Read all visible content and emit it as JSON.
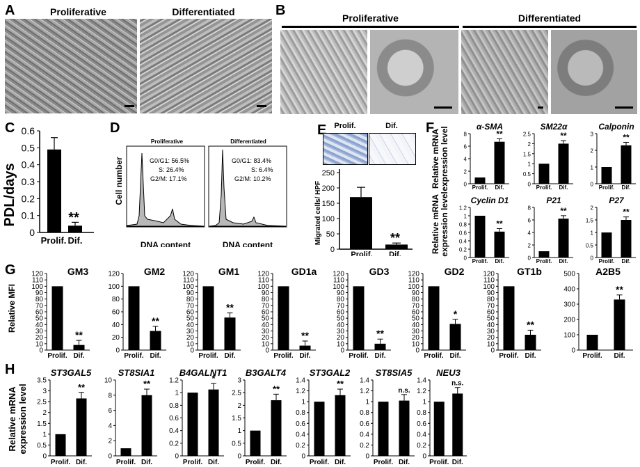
{
  "panels": {
    "A": "A",
    "B": "B",
    "C": "C",
    "D": "D",
    "E": "E",
    "F": "F",
    "G": "G",
    "H": "H"
  },
  "panelA": {
    "left": "Proliferative",
    "right": "Differentiated"
  },
  "panelB": {
    "left": "Proliferative",
    "right": "Differentiated"
  },
  "panelC": {
    "ylabel": "PDL/days",
    "ticks": [
      "0",
      "0.1",
      "0.2",
      "0.3",
      "0.4",
      "0.5",
      "0.6"
    ],
    "categories": [
      "Prolif.",
      "Dif."
    ],
    "values": [
      0.49,
      0.04
    ],
    "errors": [
      0.07,
      0.02
    ],
    "sig": "**"
  },
  "panelD": {
    "ylabel": "Cell number",
    "xlabel": "DNA content",
    "left": {
      "title": "Proliferative",
      "g0": "G0/G1: 56.5%",
      "s": "S: 26.4%",
      "g2": "G2/M: 17.1%"
    },
    "right": {
      "title": "Differentiated",
      "g0": "G0/G1: 83.4%",
      "s": "S: 6.4%",
      "g2": "G2/M: 10.2%"
    },
    "xticks": [
      "0",
      "50K",
      "100K",
      "150K",
      "200K",
      "250K"
    ]
  },
  "panelE": {
    "ylabel": "Migrated cells/ HPF",
    "ticks": [
      "0",
      "50",
      "100",
      "150",
      "200",
      "250"
    ],
    "categories": [
      "Prolif.",
      "Dif."
    ],
    "values": [
      170,
      15
    ],
    "errors": [
      32,
      5
    ],
    "sig": "**",
    "inset": [
      "Prolif.",
      "Dif."
    ]
  },
  "panelF": {
    "ylabel1": "Relative mRNA",
    "ylabel2": "expression level",
    "cats": [
      "Prolif.",
      "Dif."
    ]
  },
  "panelG": {
    "ylabel": "Relative MFI",
    "cats": [
      "Prolif.",
      "Dif."
    ]
  },
  "panelH": {
    "ylabel1": "Relative mRNA",
    "ylabel2": "expression level",
    "cats": [
      "Prolif.",
      "Dif."
    ]
  },
  "chart_data": [
    {
      "type": "bar",
      "title": "α-SMA",
      "categories": [
        "Prolif.",
        "Dif."
      ],
      "values": [
        1,
        6.7
      ],
      "ylim": [
        0,
        8
      ],
      "ticks": [
        0,
        2,
        4,
        6,
        8
      ],
      "sig": "**"
    },
    {
      "type": "bar",
      "title": "SM22α",
      "categories": [
        "Prolif.",
        "Dif."
      ],
      "values": [
        1,
        2
      ],
      "ylim": [
        0,
        2.5
      ],
      "ticks": [
        0,
        0.5,
        1,
        1.5,
        2,
        2.5
      ],
      "sig": "**"
    },
    {
      "type": "bar",
      "title": "Calponin",
      "categories": [
        "Prolif.",
        "Dif."
      ],
      "values": [
        1,
        2.3
      ],
      "ylim": [
        0,
        3
      ],
      "ticks": [
        0,
        1,
        2,
        3
      ],
      "sig": "**"
    },
    {
      "type": "bar",
      "title": "Cyclin D1",
      "categories": [
        "Prolif.",
        "Dif."
      ],
      "values": [
        1,
        0.62
      ],
      "ylim": [
        0,
        1.2
      ],
      "ticks": [
        0,
        0.2,
        0.4,
        0.6,
        0.8,
        1,
        1.2
      ],
      "sig": "**"
    },
    {
      "type": "bar",
      "title": "P21",
      "categories": [
        "Prolif.",
        "Dif."
      ],
      "values": [
        1,
        6.2
      ],
      "ylim": [
        0,
        8
      ],
      "ticks": [
        0,
        2,
        4,
        6,
        8
      ],
      "sig": "**"
    },
    {
      "type": "bar",
      "title": "P27",
      "categories": [
        "Prolif.",
        "Dif."
      ],
      "values": [
        1,
        1.5
      ],
      "ylim": [
        0,
        2
      ],
      "ticks": [
        0,
        0.5,
        1,
        1.5,
        2
      ],
      "sig": "**"
    },
    {
      "type": "bar",
      "title": "GM3",
      "categories": [
        "Prolif.",
        "Dif."
      ],
      "values": [
        100,
        8
      ],
      "ylim": [
        0,
        120
      ],
      "ticks": [
        0,
        10,
        20,
        30,
        40,
        50,
        60,
        70,
        80,
        90,
        100,
        110,
        120
      ],
      "sig": "**"
    },
    {
      "type": "bar",
      "title": "GM2",
      "categories": [
        "Prolif.",
        "Dif."
      ],
      "values": [
        100,
        30
      ],
      "ylim": [
        0,
        120
      ],
      "ticks": [
        0,
        20,
        40,
        60,
        80,
        100,
        120
      ],
      "sig": "**"
    },
    {
      "type": "bar",
      "title": "GM1",
      "categories": [
        "Prolif.",
        "Dif."
      ],
      "values": [
        100,
        51
      ],
      "ylim": [
        0,
        120
      ],
      "ticks": [
        0,
        10,
        20,
        30,
        40,
        50,
        60,
        70,
        80,
        90,
        100,
        110,
        120
      ],
      "sig": "**"
    },
    {
      "type": "bar",
      "title": "GD1a",
      "categories": [
        "Prolif.",
        "Dif."
      ],
      "values": [
        100,
        7
      ],
      "ylim": [
        0,
        120
      ],
      "ticks": [
        0,
        10,
        20,
        30,
        40,
        50,
        60,
        70,
        80,
        90,
        100,
        110,
        120
      ],
      "sig": "**"
    },
    {
      "type": "bar",
      "title": "GD3",
      "categories": [
        "Prolif.",
        "Dif."
      ],
      "values": [
        100,
        10
      ],
      "ylim": [
        0,
        120
      ],
      "ticks": [
        0,
        10,
        20,
        30,
        40,
        50,
        60,
        70,
        80,
        90,
        100,
        110,
        120
      ],
      "sig": "**"
    },
    {
      "type": "bar",
      "title": "GD2",
      "categories": [
        "Prolif.",
        "Dif."
      ],
      "values": [
        100,
        41
      ],
      "ylim": [
        0,
        120
      ],
      "ticks": [
        0,
        10,
        20,
        30,
        40,
        50,
        60,
        70,
        80,
        90,
        100,
        110,
        120
      ],
      "sig": "*"
    },
    {
      "type": "bar",
      "title": "GT1b",
      "categories": [
        "Prolif.",
        "Dif."
      ],
      "values": [
        100,
        24
      ],
      "ylim": [
        0,
        120
      ],
      "ticks": [
        0,
        10,
        20,
        30,
        40,
        50,
        60,
        70,
        80,
        90,
        100,
        110,
        120
      ],
      "sig": "**"
    },
    {
      "type": "bar",
      "title": "A2B5",
      "categories": [
        "Prolif.",
        "Dif."
      ],
      "values": [
        100,
        330
      ],
      "ylim": [
        0,
        500
      ],
      "ticks": [
        0,
        100,
        200,
        300,
        400,
        500
      ],
      "sig": "**"
    },
    {
      "type": "bar",
      "title": "ST3GAL5",
      "categories": [
        "Prolif.",
        "Dif."
      ],
      "values": [
        1,
        2.65
      ],
      "ylim": [
        0,
        3.5
      ],
      "ticks": [
        0,
        0.5,
        1,
        1.5,
        2,
        2.5,
        3,
        3.5
      ],
      "sig": "**"
    },
    {
      "type": "bar",
      "title": "ST8SIA1",
      "categories": [
        "Prolif.",
        "Dif."
      ],
      "values": [
        1,
        8
      ],
      "ylim": [
        0,
        10
      ],
      "ticks": [
        0,
        2,
        4,
        6,
        8,
        10
      ],
      "sig": "**"
    },
    {
      "type": "bar",
      "title": "B4GALNT1",
      "categories": [
        "Prolif.",
        "Dif."
      ],
      "values": [
        1,
        1.05
      ],
      "ylim": [
        0,
        1.2
      ],
      "ticks": [
        0,
        0.2,
        0.4,
        0.6,
        0.8,
        1,
        1.2
      ],
      "sig": "*"
    },
    {
      "type": "bar",
      "title": "B3GALT4",
      "categories": [
        "Prolif.",
        "Dif."
      ],
      "values": [
        1,
        2.2
      ],
      "ylim": [
        0,
        3
      ],
      "ticks": [
        0,
        0.5,
        1,
        1.5,
        2,
        2.5,
        3
      ],
      "sig": "**"
    },
    {
      "type": "bar",
      "title": "ST3GAL2",
      "categories": [
        "Prolif.",
        "Dif."
      ],
      "values": [
        1,
        1.12
      ],
      "ylim": [
        0,
        1.4
      ],
      "ticks": [
        0,
        0.2,
        0.4,
        0.6,
        0.8,
        1,
        1.2,
        1.4
      ],
      "sig": "**"
    },
    {
      "type": "bar",
      "title": "ST8SIA5",
      "categories": [
        "Prolif.",
        "Dif."
      ],
      "values": [
        1,
        1.02
      ],
      "ylim": [
        0,
        1.4
      ],
      "ticks": [
        0,
        0.2,
        0.4,
        0.6,
        0.8,
        1,
        1.2,
        1.4
      ],
      "sig": "n.s."
    },
    {
      "type": "bar",
      "title": "NEU3",
      "categories": [
        "Prolif.",
        "Dif."
      ],
      "values": [
        1,
        1.15
      ],
      "ylim": [
        0,
        1.4
      ],
      "ticks": [
        0,
        0.2,
        0.4,
        0.6,
        0.8,
        1,
        1.2,
        1.4
      ],
      "sig": "n.s."
    }
  ]
}
